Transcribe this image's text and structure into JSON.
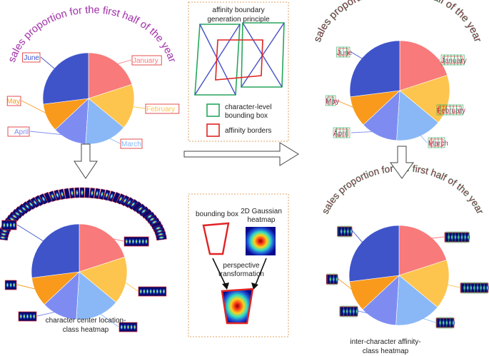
{
  "title_text": "sales proportion for the first half of the year",
  "pie": {
    "slices": [
      {
        "label": "January",
        "value": 20,
        "color": "#f87a7a"
      },
      {
        "label": "February",
        "value": 16,
        "color": "#fdc54e"
      },
      {
        "label": "March",
        "value": 15,
        "color": "#8ab8f7"
      },
      {
        "label": "April",
        "value": 12,
        "color": "#7e8cf2"
      },
      {
        "label": "May",
        "value": 10,
        "color": "#f99a1c"
      },
      {
        "label": "June",
        "value": 27,
        "color": "#3f54c9"
      }
    ]
  },
  "affinity_box": {
    "title_line1": "affinity boundary",
    "title_line2": "generation principle",
    "legend_char_line1": "character-level",
    "legend_char_line2": "bounding box",
    "legend_aff": "affinity borders",
    "char_color": "#26a65b",
    "aff_color": "#e02424",
    "diag_color": "#4451c9"
  },
  "gauss_box": {
    "bbox_label": "bounding box",
    "heat_line1": "2D Gaussian",
    "heat_line2": "heatmap",
    "persp_line1": "perspective",
    "persp_line2": "transformation"
  },
  "captions": {
    "left_line1": "character center location-",
    "left_line2": "class heatmap",
    "right_line1": "inter-character affinity-",
    "right_line2": "class heatmap"
  }
}
